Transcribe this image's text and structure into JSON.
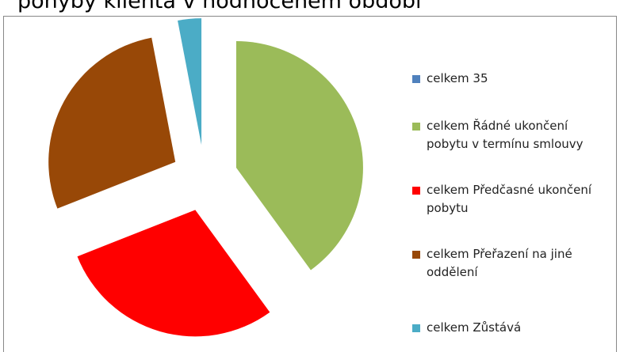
{
  "chart_data": {
    "type": "pie",
    "title": "pohyby klienta v hodnoceném období",
    "categories": [
      "celkem 35",
      "celkem Řádné ukončení pobytu v termínu smlouvy",
      "celkem Předčasné ukončení pobytu",
      "celkem Přeřazení na jiné oddělení",
      "celkem Zůstává"
    ],
    "values": [
      0,
      40,
      29,
      28,
      3
    ],
    "colors": [
      "#4f81bd",
      "#9bbb59",
      "#ff0000",
      "#984807",
      "#4bacc6"
    ],
    "legend": "right"
  }
}
